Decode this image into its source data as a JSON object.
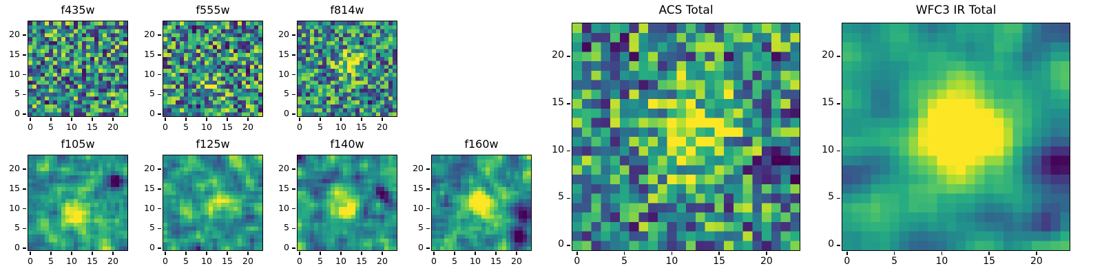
{
  "figure_title": "",
  "colormap": "viridis",
  "chart_data": [
    {
      "type": "heatmap",
      "title": "f435w",
      "grid": 24,
      "xlim": [
        -0.5,
        23.5
      ],
      "ylim": [
        -0.5,
        23.5
      ],
      "xticks": [
        0,
        5,
        10,
        15,
        20
      ],
      "yticks": [
        0,
        5,
        10,
        15,
        20
      ],
      "colormap": "viridis",
      "tick_font": 12.5,
      "appearance": {
        "seed": 101,
        "noise_min": 0.08,
        "noise_max": 0.95,
        "dark_prob": 0.05,
        "blur": 0,
        "gain": 1.0,
        "source": {
          "x": 12,
          "y": 12,
          "amp": 0.0,
          "sigma": 2.0
        },
        "dark_patches": []
      }
    },
    {
      "type": "heatmap",
      "title": "f555w",
      "grid": 24,
      "xlim": [
        -0.5,
        23.5
      ],
      "ylim": [
        -0.5,
        23.5
      ],
      "xticks": [
        0,
        5,
        10,
        15,
        20
      ],
      "yticks": [
        0,
        5,
        10,
        15,
        20
      ],
      "colormap": "viridis",
      "tick_font": 12.5,
      "appearance": {
        "seed": 202,
        "noise_min": 0.08,
        "noise_max": 0.95,
        "dark_prob": 0.06,
        "blur": 0,
        "gain": 1.0,
        "source": {
          "x": 11,
          "y": 7,
          "amp": 0.25,
          "sigma": 2.0
        },
        "dark_patches": []
      }
    },
    {
      "type": "heatmap",
      "title": "f814w",
      "grid": 24,
      "xlim": [
        -0.5,
        23.5
      ],
      "ylim": [
        -0.5,
        23.5
      ],
      "xticks": [
        0,
        5,
        10,
        15,
        20
      ],
      "yticks": [
        0,
        5,
        10,
        15,
        20
      ],
      "colormap": "viridis",
      "tick_font": 12.5,
      "appearance": {
        "seed": 303,
        "noise_min": 0.1,
        "noise_max": 0.9,
        "dark_prob": 0.04,
        "blur": 0,
        "gain": 1.0,
        "source": {
          "x": 12,
          "y": 13,
          "amp": 0.5,
          "sigma": 2.2
        },
        "dark_patches": []
      }
    },
    {
      "type": "heatmap",
      "title": "f105w",
      "grid": 24,
      "xlim": [
        -0.5,
        23.5
      ],
      "ylim": [
        -0.5,
        23.5
      ],
      "xticks": [
        0,
        5,
        10,
        15,
        20
      ],
      "yticks": [
        0,
        5,
        10,
        15,
        20
      ],
      "colormap": "viridis",
      "tick_font": 12.5,
      "appearance": {
        "seed": 404,
        "noise_min": 0.15,
        "noise_max": 0.9,
        "dark_prob": 0.03,
        "blur": 1,
        "gain": 1.6,
        "source": {
          "x": 11,
          "y": 9,
          "amp": 0.45,
          "sigma": 3.0
        },
        "dark_patches": [
          {
            "x": 21,
            "y": 17,
            "sigma": 1.6,
            "amp": 0.5
          }
        ]
      }
    },
    {
      "type": "heatmap",
      "title": "f125w",
      "grid": 24,
      "xlim": [
        -0.5,
        23.5
      ],
      "ylim": [
        -0.5,
        23.5
      ],
      "xticks": [
        0,
        5,
        10,
        15,
        20
      ],
      "yticks": [
        0,
        5,
        10,
        15,
        20
      ],
      "colormap": "viridis",
      "tick_font": 12.5,
      "appearance": {
        "seed": 505,
        "noise_min": 0.15,
        "noise_max": 0.9,
        "dark_prob": 0.03,
        "blur": 1,
        "gain": 1.6,
        "source": {
          "x": 12,
          "y": 11,
          "amp": 0.4,
          "sigma": 2.5
        },
        "dark_patches": []
      }
    },
    {
      "type": "heatmap",
      "title": "f140w",
      "grid": 24,
      "xlim": [
        -0.5,
        23.5
      ],
      "ylim": [
        -0.5,
        23.5
      ],
      "xticks": [
        0,
        5,
        10,
        15,
        20
      ],
      "yticks": [
        0,
        5,
        10,
        15,
        20
      ],
      "colormap": "viridis",
      "tick_font": 12.5,
      "appearance": {
        "seed": 606,
        "noise_min": 0.15,
        "noise_max": 0.9,
        "dark_prob": 0.04,
        "blur": 1,
        "gain": 1.6,
        "source": {
          "x": 11,
          "y": 10,
          "amp": 0.45,
          "sigma": 2.5
        },
        "dark_patches": [
          {
            "x": 20,
            "y": 14,
            "sigma": 1.3,
            "amp": 0.4
          }
        ]
      }
    },
    {
      "type": "heatmap",
      "title": "f160w",
      "grid": 24,
      "xlim": [
        -0.5,
        23.5
      ],
      "ylim": [
        -0.5,
        23.5
      ],
      "xticks": [
        0,
        5,
        10,
        15,
        20
      ],
      "yticks": [
        0,
        5,
        10,
        15,
        20
      ],
      "colormap": "viridis",
      "tick_font": 12.5,
      "appearance": {
        "seed": 707,
        "noise_min": 0.15,
        "noise_max": 0.9,
        "dark_prob": 0.03,
        "blur": 1,
        "gain": 1.6,
        "source": {
          "x": 11,
          "y": 11,
          "amp": 0.6,
          "sigma": 2.8
        },
        "dark_patches": [
          {
            "x": 21,
            "y": 3,
            "sigma": 1.6,
            "amp": 0.5
          },
          {
            "x": 22,
            "y": 8,
            "sigma": 1.2,
            "amp": 0.35
          }
        ]
      }
    },
    {
      "type": "heatmap",
      "title": "ACS Total",
      "grid": 24,
      "xlim": [
        -0.5,
        23.5
      ],
      "ylim": [
        -0.5,
        23.5
      ],
      "xticks": [
        0,
        5,
        10,
        15,
        20
      ],
      "yticks": [
        0,
        5,
        10,
        15,
        20
      ],
      "colormap": "viridis",
      "tick_font": 14,
      "appearance": {
        "seed": 808,
        "noise_min": 0.1,
        "noise_max": 0.92,
        "dark_prob": 0.04,
        "blur": 0,
        "gain": 1.0,
        "source": {
          "x": 12,
          "y": 12,
          "amp": 0.5,
          "sigma": 3.2
        },
        "dark_patches": [
          {
            "x": 22,
            "y": 9,
            "sigma": 1.2,
            "amp": 0.45
          }
        ]
      }
    },
    {
      "type": "heatmap",
      "title": "WFC3 IR Total",
      "grid": 24,
      "xlim": [
        -0.5,
        23.5
      ],
      "ylim": [
        -0.5,
        23.5
      ],
      "xticks": [
        0,
        5,
        10,
        15,
        20
      ],
      "yticks": [
        0,
        5,
        10,
        15,
        20
      ],
      "colormap": "viridis",
      "tick_font": 14,
      "appearance": {
        "seed": 909,
        "noise_min": 0.2,
        "noise_max": 0.85,
        "dark_prob": 0.02,
        "blur": 2,
        "gain": 2.2,
        "source": {
          "x": 12,
          "y": 12,
          "amp": 0.85,
          "sigma": 3.2
        },
        "dark_patches": [
          {
            "x": 22,
            "y": 9,
            "sigma": 2.0,
            "amp": 0.6
          },
          {
            "x": 21,
            "y": 2,
            "sigma": 1.5,
            "amp": 0.45
          }
        ]
      }
    }
  ]
}
